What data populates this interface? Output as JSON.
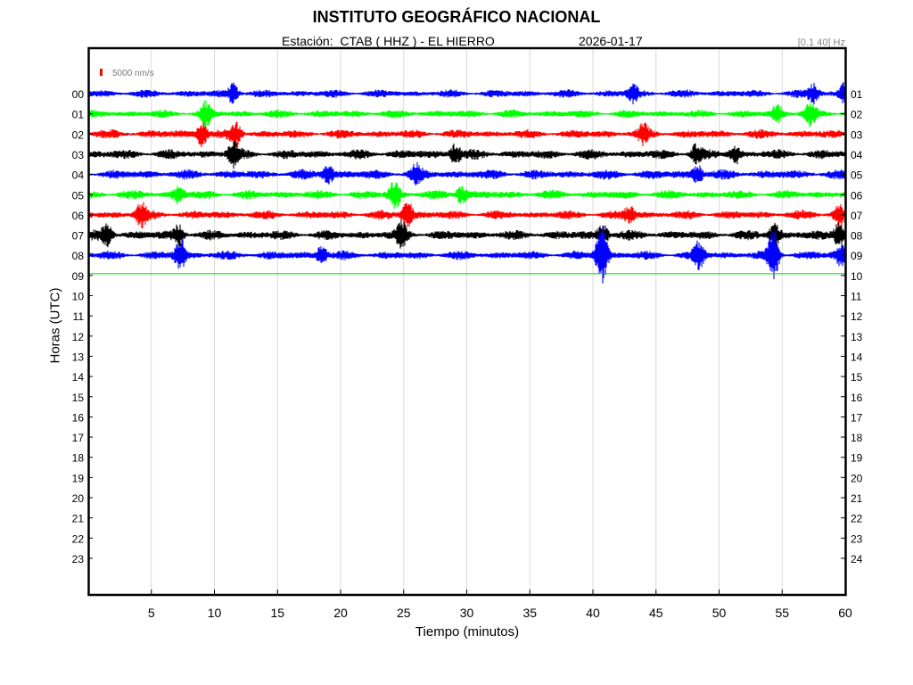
{
  "title": "INSTITUTO GEOGRÁFICO NACIONAL",
  "station_label": "Estación:  CTAB ( HHZ ) - EL HIERRO",
  "date": "2026-01-17",
  "filter": "[0.1 40] Hz",
  "scale_label": "5000 nm/s",
  "colors": {
    "blue": "#0000ff",
    "green": "#00ff00",
    "red": "#ff0000",
    "black": "#000000",
    "scale": "#ff0000",
    "cursor": "#00cc00",
    "grid": "#d9d9d9"
  },
  "chart_data": {
    "type": "line",
    "title": "INSTITUTO GEOGRÁFICO NACIONAL",
    "xlabel": "Tiempo (minutos)",
    "ylabel": "Horas (UTC)",
    "xlim": [
      0,
      60
    ],
    "x_ticks": [
      5,
      10,
      15,
      20,
      25,
      30,
      35,
      40,
      45,
      50,
      55,
      60
    ],
    "left_ticks": [
      "00",
      "01",
      "02",
      "03",
      "04",
      "05",
      "06",
      "07",
      "08",
      "09",
      "10",
      "11",
      "12",
      "13",
      "14",
      "15",
      "16",
      "17",
      "18",
      "19",
      "20",
      "21",
      "22",
      "23"
    ],
    "right_ticks": [
      "01",
      "02",
      "03",
      "04",
      "05",
      "06",
      "07",
      "08",
      "09",
      "10",
      "11",
      "12",
      "13",
      "14",
      "15",
      "16",
      "17",
      "18",
      "19",
      "20",
      "21",
      "22",
      "23",
      "24"
    ],
    "grid": "vertical",
    "color_cycle": [
      "blue",
      "green",
      "red",
      "black"
    ],
    "traces": [
      {
        "hour": "00",
        "color": "blue",
        "noise_level": 0.45,
        "events": [
          {
            "t": 11.5,
            "amp": 1.2
          },
          {
            "t": 43.2,
            "amp": 1.0
          },
          {
            "t": 57.5,
            "amp": 1.1
          },
          {
            "t": 60,
            "amp": 1.3
          }
        ]
      },
      {
        "hour": "01",
        "color": "green",
        "noise_level": 0.45,
        "events": [
          {
            "t": 9.3,
            "amp": 1.4
          },
          {
            "t": 57.2,
            "amp": 1.3
          },
          {
            "t": 54.6,
            "amp": 1.0
          }
        ]
      },
      {
        "hour": "02",
        "color": "red",
        "noise_level": 0.5,
        "events": [
          {
            "t": 9.0,
            "amp": 1.5
          },
          {
            "t": 11.7,
            "amp": 1.3
          },
          {
            "t": 44.0,
            "amp": 1.0
          }
        ]
      },
      {
        "hour": "03",
        "color": "black",
        "noise_level": 0.55,
        "events": [
          {
            "t": 11.5,
            "amp": 1.4
          },
          {
            "t": 29.1,
            "amp": 1.3
          },
          {
            "t": 48.2,
            "amp": 1.1
          },
          {
            "t": 51.3,
            "amp": 1.0
          }
        ]
      },
      {
        "hour": "04",
        "color": "blue",
        "noise_level": 0.55,
        "events": [
          {
            "t": 19.0,
            "amp": 1.2
          },
          {
            "t": 26.0,
            "amp": 1.0
          },
          {
            "t": 48.3,
            "amp": 1.1
          }
        ]
      },
      {
        "hour": "05",
        "color": "green",
        "noise_level": 0.5,
        "events": [
          {
            "t": 24.3,
            "amp": 1.8
          },
          {
            "t": 29.6,
            "amp": 1.2
          },
          {
            "t": 7.2,
            "amp": 1.0
          }
        ]
      },
      {
        "hour": "06",
        "color": "red",
        "noise_level": 0.5,
        "events": [
          {
            "t": 4.2,
            "amp": 1.3
          },
          {
            "t": 25.3,
            "amp": 1.7
          },
          {
            "t": 42.9,
            "amp": 1.0
          },
          {
            "t": 59.5,
            "amp": 1.2
          }
        ]
      },
      {
        "hour": "07",
        "color": "black",
        "noise_level": 0.55,
        "events": [
          {
            "t": 1.5,
            "amp": 1.3
          },
          {
            "t": 7.2,
            "amp": 1.2
          },
          {
            "t": 24.9,
            "amp": 1.4
          },
          {
            "t": 40.8,
            "amp": 1.3
          },
          {
            "t": 54.4,
            "amp": 1.4
          },
          {
            "t": 59.5,
            "amp": 1.5
          }
        ]
      },
      {
        "hour": "08",
        "color": "blue",
        "noise_level": 0.5,
        "events": [
          {
            "t": 7.3,
            "amp": 2.0
          },
          {
            "t": 18.5,
            "amp": 1.2
          },
          {
            "t": 40.7,
            "amp": 4.0
          },
          {
            "t": 48.4,
            "amp": 1.5
          },
          {
            "t": 54.3,
            "amp": 3.3
          },
          {
            "t": 59.7,
            "amp": 1.3
          }
        ]
      }
    ],
    "current_time": {
      "hour": "09",
      "minute": 60
    }
  }
}
